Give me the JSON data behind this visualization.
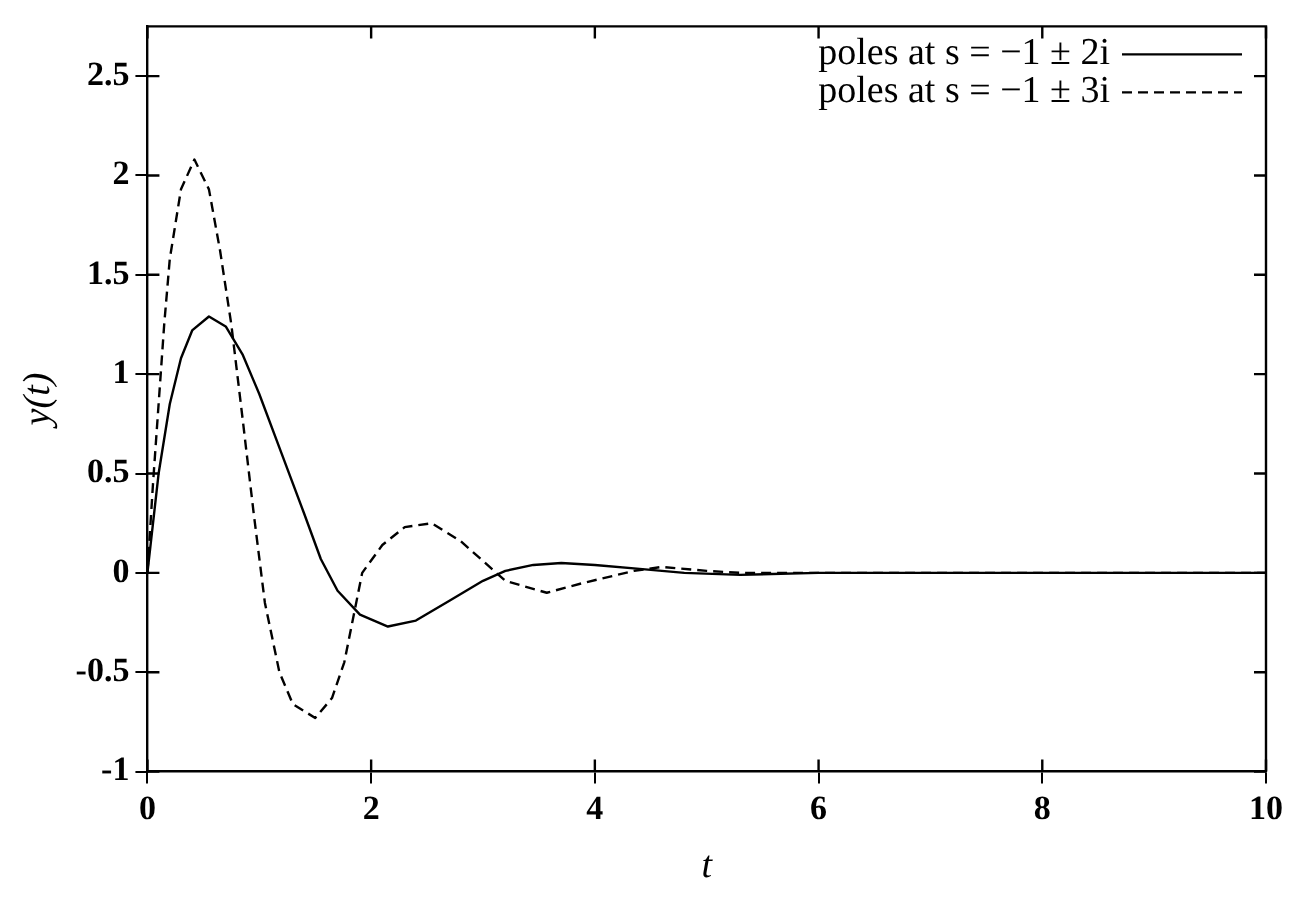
{
  "chart_data": {
    "type": "line",
    "xlabel": "t",
    "ylabel": "y(t)",
    "xlim": [
      0,
      10
    ],
    "xticks": [
      0,
      2,
      4,
      6,
      8,
      10
    ],
    "ylim": [
      -1,
      2.75
    ],
    "yticks": [
      -1,
      -0.5,
      0,
      0.5,
      1,
      1.5,
      2,
      2.5
    ],
    "grid": false,
    "legend": "top right",
    "marker": "none",
    "series": [
      {
        "name": "poles at s = −1 ± 2i",
        "color": "#000000",
        "line_style": "solid",
        "x": [
          0,
          0.1,
          0.2,
          0.3,
          0.4,
          0.55,
          0.7,
          0.85,
          1.0,
          1.2,
          1.4,
          1.55,
          1.7,
          1.9,
          2.15,
          2.4,
          2.7,
          3.0,
          3.2,
          3.45,
          3.7,
          4.0,
          4.4,
          4.8,
          5.3,
          6,
          7,
          10
        ],
        "values": [
          0,
          0.5,
          0.85,
          1.08,
          1.22,
          1.29,
          1.24,
          1.1,
          0.9,
          0.6,
          0.3,
          0.07,
          -0.09,
          -0.21,
          -0.27,
          -0.24,
          -0.14,
          -0.04,
          0.01,
          0.04,
          0.05,
          0.04,
          0.02,
          0,
          -0.01,
          0,
          0,
          0
        ]
      },
      {
        "name": "poles at s = −1 ± 3i",
        "color": "#000000",
        "line_style": "dashed",
        "x": [
          0,
          0.05,
          0.1,
          0.15,
          0.2,
          0.3,
          0.42,
          0.55,
          0.65,
          0.75,
          0.85,
          0.95,
          1.05,
          1.18,
          1.3,
          1.5,
          1.65,
          1.76,
          1.92,
          2.1,
          2.3,
          2.54,
          2.8,
          3.0,
          3.2,
          3.57,
          3.9,
          4.2,
          4.35,
          4.6,
          5.0,
          5.3,
          6,
          10
        ],
        "values": [
          0,
          0.45,
          0.85,
          1.25,
          1.58,
          1.93,
          2.08,
          1.93,
          1.62,
          1.25,
          0.78,
          0.3,
          -0.15,
          -0.5,
          -0.66,
          -0.73,
          -0.63,
          -0.45,
          0,
          0.14,
          0.23,
          0.25,
          0.16,
          0.06,
          -0.04,
          -0.1,
          -0.05,
          -0.01,
          0.01,
          0.03,
          0.01,
          0,
          0,
          0
        ]
      }
    ]
  }
}
